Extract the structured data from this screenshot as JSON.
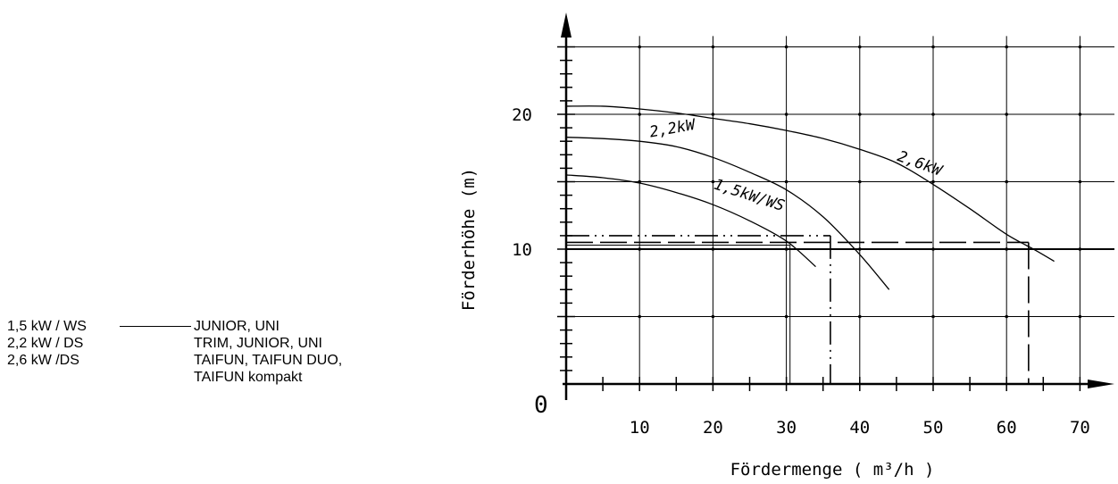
{
  "legend": [
    {
      "key": "1,5 kW / WS",
      "style": "solid",
      "desc": "JUNIOR, UNI",
      "desc2": ""
    },
    {
      "key": "2,2 kW / DS",
      "style": "dash-dot-dot",
      "desc": "TRIM, JUNIOR, UNI",
      "desc2": ""
    },
    {
      "key": "2,6 kW /DS",
      "style": "dashed",
      "desc": "TAIFUN, TAIFUN DUO,",
      "desc2": "TAIFUN kompakt"
    }
  ],
  "chart_data": {
    "type": "line",
    "xlabel": "Fördermenge ( m³/h )",
    "ylabel": "Förderhöhe (m)",
    "origin_label": "0",
    "xlim": [
      0,
      75
    ],
    "ylim": [
      0,
      27
    ],
    "x_ticks": [
      {
        "value": 10,
        "label": "10"
      },
      {
        "value": 20,
        "label": "20"
      },
      {
        "value": 30,
        "label": "30"
      },
      {
        "value": 40,
        "label": "40"
      },
      {
        "value": 50,
        "label": "50"
      },
      {
        "value": 60,
        "label": "60"
      },
      {
        "value": 70,
        "label": "70"
      }
    ],
    "y_ticks": [
      {
        "value": 10,
        "label": "10"
      },
      {
        "value": 20,
        "label": "20"
      }
    ],
    "grid": true,
    "series": [
      {
        "name": "1,5kW/WS",
        "label": "1,5kW/WS",
        "x": [
          0,
          5,
          10,
          15,
          20,
          25,
          30,
          34
        ],
        "y": [
          15.5,
          15.3,
          14.9,
          14.2,
          13.3,
          12.1,
          10.6,
          8.7
        ],
        "label_at": [
          20,
          14.5
        ],
        "label_rot": 18
      },
      {
        "name": "2,2kW",
        "label": "2,2kW",
        "x": [
          0,
          5,
          10,
          15,
          20,
          25,
          30,
          35,
          40,
          44
        ],
        "y": [
          18.3,
          18.2,
          18.0,
          17.6,
          16.8,
          15.7,
          14.4,
          12.4,
          9.6,
          7.0
        ],
        "label_at": [
          11.5,
          18.3
        ],
        "label_rot": -10
      },
      {
        "name": "2,6kW",
        "label": "2,6kW",
        "x": [
          0,
          5,
          10,
          15,
          20,
          25,
          30,
          35,
          40,
          45,
          50,
          55,
          60,
          64,
          66.5
        ],
        "y": [
          20.6,
          20.6,
          20.4,
          20.1,
          19.7,
          19.3,
          18.8,
          18.2,
          17.4,
          16.4,
          14.8,
          13.0,
          11.1,
          9.9,
          9.1
        ],
        "label_at": [
          45,
          16.6
        ],
        "label_rot": 20
      }
    ],
    "operating_points": [
      {
        "series": "2,2kW",
        "style": "dash-dot-dot",
        "x": 36,
        "y": 11.0
      },
      {
        "series": "2,6kW",
        "style": "dashed",
        "x": 63,
        "y": 10.5
      },
      {
        "series": "1,5kW/WS",
        "style": "solid",
        "x": 30.5,
        "y": 10.3
      }
    ]
  }
}
